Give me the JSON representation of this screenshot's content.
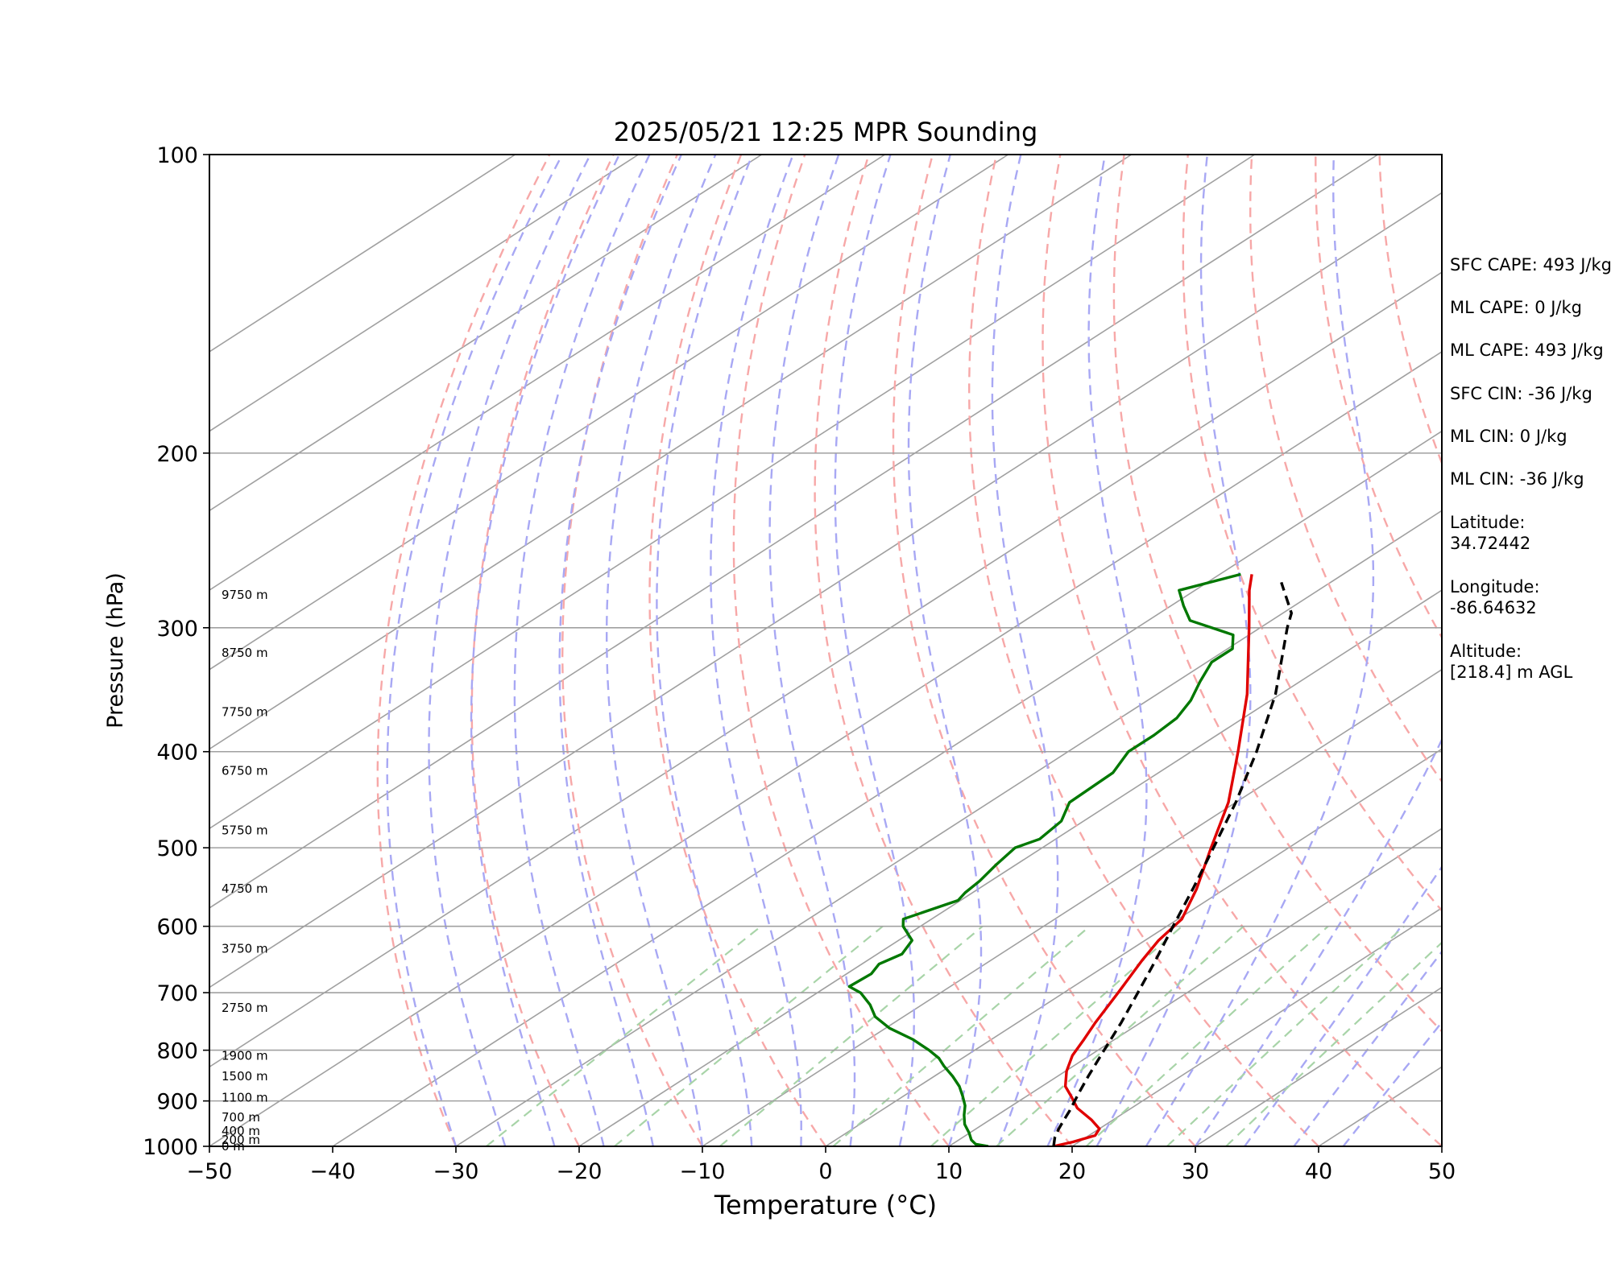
{
  "chart_data": {
    "type": "line",
    "title": "2025/05/21 12:25 MPR Sounding",
    "xlabel": "Temperature (°C)",
    "ylabel": "Pressure (hPa)",
    "xlim": [
      -50,
      50
    ],
    "ylim": [
      1000,
      100
    ],
    "y_scale": "log",
    "skew": "skew-T log-p",
    "x_ticks": [
      "−50",
      "−40",
      "−30",
      "−20",
      "−10",
      "0",
      "10",
      "20",
      "30",
      "40",
      "50"
    ],
    "y_ticks": [
      "1000",
      "900",
      "800",
      "700",
      "600",
      "500",
      "400",
      "300",
      "200",
      "100"
    ],
    "height_labels": [
      {
        "p": 1000,
        "label": "0 m"
      },
      {
        "p": 985,
        "label": "200 m"
      },
      {
        "p": 965,
        "label": "400 m"
      },
      {
        "p": 935,
        "label": "700 m"
      },
      {
        "p": 893,
        "label": "1100 m"
      },
      {
        "p": 850,
        "label": "1500 m"
      },
      {
        "p": 810,
        "label": "1900 m"
      },
      {
        "p": 725,
        "label": "2750 m"
      },
      {
        "p": 632,
        "label": "3750 m"
      },
      {
        "p": 550,
        "label": "4750 m"
      },
      {
        "p": 480,
        "label": "5750 m"
      },
      {
        "p": 418,
        "label": "6750 m"
      },
      {
        "p": 365,
        "label": "7750 m"
      },
      {
        "p": 318,
        "label": "8750 m"
      },
      {
        "p": 278,
        "label": "9750 m"
      }
    ],
    "series": [
      {
        "color": "#e00000",
        "points": [
          [
            1000,
            18.5
          ],
          [
            990,
            19.5
          ],
          [
            975,
            20.5
          ],
          [
            960,
            20.0
          ],
          [
            940,
            18.2
          ],
          [
            915,
            15.6
          ],
          [
            890,
            13.6
          ],
          [
            870,
            11.9
          ],
          [
            840,
            10.1
          ],
          [
            810,
            8.6
          ],
          [
            780,
            7.5
          ],
          [
            750,
            6.3
          ],
          [
            700,
            4.4
          ],
          [
            650,
            2.3
          ],
          [
            620,
            1.1
          ],
          [
            590,
            0.3
          ],
          [
            550,
            -2.3
          ],
          [
            500,
            -6.3
          ],
          [
            450,
            -10.6
          ],
          [
            400,
            -16.2
          ],
          [
            350,
            -22.7
          ],
          [
            300,
            -30.9
          ],
          [
            275,
            -35.6
          ],
          [
            265,
            -37.4
          ]
        ]
      },
      {
        "color": "#007800",
        "points": [
          [
            1000,
            13.2
          ],
          [
            995,
            11.9
          ],
          [
            985,
            11.0
          ],
          [
            970,
            10.0
          ],
          [
            950,
            8.5
          ],
          [
            930,
            7.3
          ],
          [
            910,
            6.2
          ],
          [
            890,
            4.8
          ],
          [
            870,
            3.3
          ],
          [
            850,
            1.5
          ],
          [
            830,
            -0.5
          ],
          [
            815,
            -1.9
          ],
          [
            800,
            -3.7
          ],
          [
            780,
            -6.4
          ],
          [
            760,
            -9.7
          ],
          [
            740,
            -12.3
          ],
          [
            720,
            -14.2
          ],
          [
            700,
            -16.5
          ],
          [
            690,
            -18.2
          ],
          [
            670,
            -18.0
          ],
          [
            655,
            -18.6
          ],
          [
            640,
            -18.0
          ],
          [
            620,
            -18.9
          ],
          [
            600,
            -21.4
          ],
          [
            590,
            -22.3
          ],
          [
            565,
            -20.2
          ],
          [
            555,
            -20.6
          ],
          [
            540,
            -20.9
          ],
          [
            520,
            -21.6
          ],
          [
            500,
            -22.2
          ],
          [
            490,
            -21.3
          ],
          [
            470,
            -21.8
          ],
          [
            450,
            -23.5
          ],
          [
            420,
            -23.7
          ],
          [
            400,
            -25.1
          ],
          [
            385,
            -25.1
          ],
          [
            370,
            -25.4
          ],
          [
            355,
            -26.5
          ],
          [
            340,
            -28.1
          ],
          [
            325,
            -29.6
          ],
          [
            315,
            -29.6
          ],
          [
            305,
            -31.3
          ],
          [
            295,
            -36.6
          ],
          [
            285,
            -39.0
          ],
          [
            275,
            -41.3
          ],
          [
            265,
            -38.3
          ]
        ]
      },
      {
        "color": "#000000",
        "dashed": true,
        "points": [
          [
            1000,
            18.5
          ],
          [
            980,
            17.5
          ],
          [
            960,
            16.7
          ],
          [
            940,
            16.0
          ],
          [
            920,
            15.3
          ],
          [
            900,
            14.5
          ],
          [
            880,
            13.7
          ],
          [
            850,
            12.5
          ],
          [
            800,
            10.5
          ],
          [
            750,
            8.4
          ],
          [
            700,
            6.0
          ],
          [
            650,
            3.4
          ],
          [
            600,
            0.5
          ],
          [
            550,
            -2.6
          ],
          [
            500,
            -6.1
          ],
          [
            450,
            -10.0
          ],
          [
            400,
            -14.7
          ],
          [
            350,
            -20.4
          ],
          [
            300,
            -27.8
          ],
          [
            290,
            -29.3
          ],
          [
            270,
            -34.0
          ]
        ]
      }
    ]
  },
  "stats": {
    "sfc_cape": "SFC CAPE: 493 J/kg",
    "ml_cape_0": "ML CAPE: 0 J/kg",
    "ml_cape_493": "ML CAPE: 493 J/kg",
    "sfc_cin": "SFC CIN: -36 J/kg",
    "ml_cin_0": "ML CIN: 0 J/kg",
    "ml_cin_36": "ML CIN: -36 J/kg",
    "latitude": "Latitude:\n34.72442",
    "longitude": "Longitude:\n-86.64632",
    "altitude": "Altitude:\n[218.4] m AGL"
  },
  "colors": {
    "dry_adiabat": "#f7a8a8",
    "moist_adiabat": "#a8a8f4",
    "mixing_ratio": "#a8d4a8",
    "isotherm": "#a0a0a0"
  }
}
